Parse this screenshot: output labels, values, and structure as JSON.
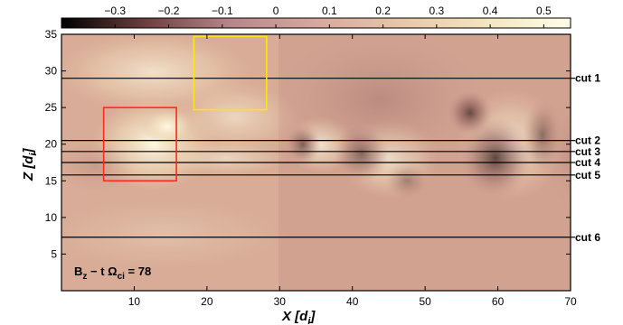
{
  "chart_data": {
    "type": "heatmap",
    "quantity": "B_z",
    "annotation": {
      "lhs": "B",
      "lhs_sub": "z",
      "mid": " − t Ω",
      "mid_sub": "ci",
      "rhs": " = 78"
    },
    "xlabel": {
      "base": "X [d",
      "sub": "i",
      "close": "]"
    },
    "ylabel": {
      "base": "Z [d",
      "sub": "i",
      "close": "]"
    },
    "xlim": [
      0,
      70
    ],
    "ylim": [
      0,
      35
    ],
    "x_ticks": [
      10,
      20,
      30,
      40,
      50,
      60,
      70
    ],
    "y_ticks": [
      5,
      10,
      15,
      20,
      25,
      30,
      35
    ],
    "colorbar": {
      "range": [
        -0.4,
        0.55
      ],
      "ticks": [
        -0.3,
        -0.2,
        -0.1,
        0,
        0.1,
        0.2,
        0.3,
        0.4,
        0.5
      ],
      "tick_labels": [
        "−0.3",
        "−0.2",
        "−0.1",
        "0",
        "0.1",
        "0.2",
        "0.3",
        "0.4",
        "0.5"
      ],
      "colors": [
        "#000000",
        "#6e3f3f",
        "#b8868a",
        "#d7a89e",
        "#e8c6a8",
        "#f3e5bf",
        "#fffde8"
      ]
    },
    "cuts": [
      {
        "label": "cut 1",
        "z": 29.0
      },
      {
        "label": "cut 2",
        "z": 20.5
      },
      {
        "label": "cut 3",
        "z": 19.0
      },
      {
        "label": "cut 4",
        "z": 17.5
      },
      {
        "label": "cut 5",
        "z": 15.8
      },
      {
        "label": "cut 6",
        "z": 7.3
      }
    ],
    "boxes": [
      {
        "color": "#ff2a1a",
        "x": [
          5.8,
          15.8
        ],
        "z": [
          15.0,
          25.0
        ]
      },
      {
        "color": "#ffe21a",
        "x": [
          18.2,
          28.2
        ],
        "z": [
          24.7,
          34.7
        ]
      }
    ]
  }
}
